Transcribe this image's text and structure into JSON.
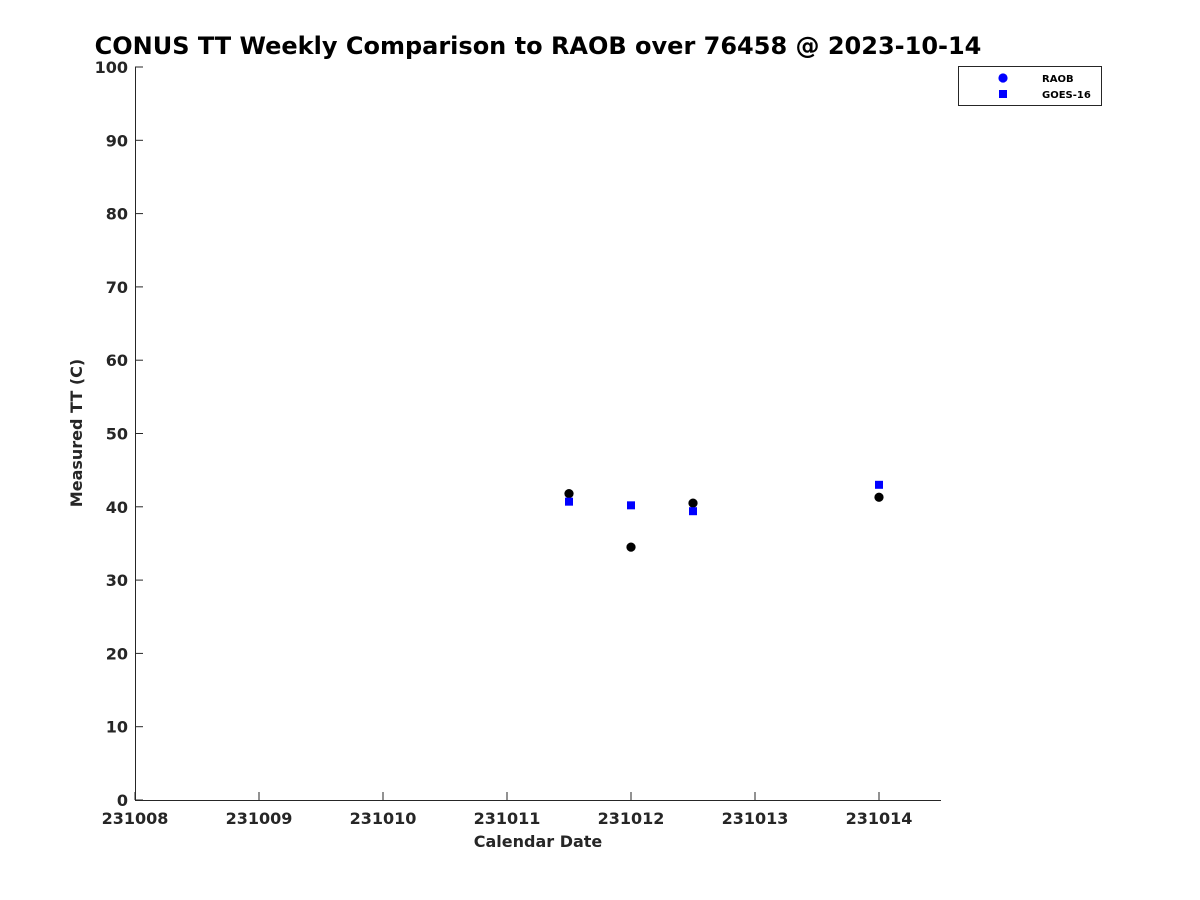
{
  "chart_data": {
    "type": "scatter",
    "title": "CONUS TT Weekly Comparison to RAOB over 76458 @ 2023-10-14",
    "xlabel": "Calendar Date",
    "ylabel": "Measured TT (C)",
    "x_tick_labels": [
      "231008",
      "231009",
      "231010",
      "231011",
      "231012",
      "231013",
      "231014"
    ],
    "y_tick_labels": [
      "0",
      "10",
      "20",
      "30",
      "40",
      "50",
      "60",
      "70",
      "80",
      "90",
      "100"
    ],
    "xlim": [
      "2023-10-08",
      "2023-10-14 12:00"
    ],
    "ylim": [
      0,
      100
    ],
    "grid": false,
    "legend_position": "top-right",
    "series": [
      {
        "name": "RAOB",
        "marker": "circle",
        "color": "#000000",
        "legend_color": "#0000ff",
        "x": [
          "2023-10-11 12:00",
          "2023-10-12 00:00",
          "2023-10-12 12:00",
          "2023-10-14 00:00"
        ],
        "y": [
          41.8,
          34.5,
          40.5,
          41.3
        ]
      },
      {
        "name": "GOES-16",
        "marker": "square",
        "color": "#0000ff",
        "legend_color": "#0000ff",
        "x": [
          "2023-10-11 12:00",
          "2023-10-12 00:00",
          "2023-10-12 12:00",
          "2023-10-14 00:00"
        ],
        "y": [
          40.7,
          40.2,
          39.4,
          43.0
        ]
      }
    ]
  }
}
